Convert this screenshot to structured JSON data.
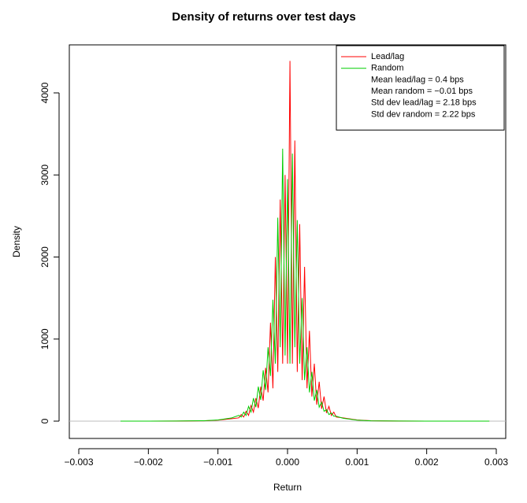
{
  "chart_data": {
    "type": "line",
    "title": "Density of returns over test days",
    "xlabel": "Return",
    "ylabel": "Density",
    "xlim": [
      -0.003136,
      0.003136
    ],
    "ylim": [
      -211,
      4585
    ],
    "xticks": [
      {
        "value": -0.003,
        "label": "−0.003"
      },
      {
        "value": -0.002,
        "label": "−0.002"
      },
      {
        "value": -0.001,
        "label": "−0.001"
      },
      {
        "value": 0,
        "label": "0.000"
      },
      0.001,
      0.002,
      0.003
    ],
    "yticks": [
      0,
      1000,
      2000,
      3000,
      4000
    ],
    "hline": 0,
    "hline_color": "#bebebe",
    "legend_position": "top-right",
    "x": [
      -0.0024,
      -0.002,
      -0.0016,
      -0.0012,
      -0.001,
      -0.0008,
      -0.0007,
      -0.000665,
      -0.00063,
      -0.000595,
      -0.00056,
      -0.000525,
      -0.00049,
      -0.000455,
      -0.00042,
      -0.000385,
      -0.00035,
      -0.000315,
      -0.00028,
      -0.000245,
      -0.00021,
      -0.000175,
      -0.00014,
      -0.000105,
      -7e-05,
      -3.5e-05,
      0,
      3.5e-05,
      7e-05,
      0.000105,
      0.00014,
      0.000175,
      0.00021,
      0.000245,
      0.00028,
      0.000315,
      0.00035,
      0.000385,
      0.00042,
      0.000455,
      0.00049,
      0.000525,
      0.00056,
      0.000595,
      0.00063,
      0.000665,
      0.0007,
      0.0008,
      0.001,
      0.0012,
      0.0016,
      0.002,
      0.0025,
      0.0029
    ],
    "series": [
      {
        "name": "Lead/lag",
        "color": "#ff0000",
        "values": [
          0,
          0,
          1,
          4,
          12,
          30,
          40,
          80,
          50,
          120,
          70,
          190,
          110,
          280,
          160,
          420,
          250,
          650,
          350,
          1200,
          400,
          2000,
          600,
          2700,
          700,
          3000,
          700,
          4390,
          700,
          3420,
          600,
          2400,
          500,
          1880,
          400,
          1100,
          300,
          700,
          200,
          480,
          150,
          300,
          100,
          180,
          70,
          110,
          50,
          40,
          15,
          5,
          1,
          0,
          0,
          0
        ]
      },
      {
        "name": "Random",
        "color": "#00cd00",
        "values": [
          0,
          0,
          1,
          5,
          15,
          40,
          70,
          50,
          110,
          70,
          180,
          110,
          280,
          170,
          420,
          260,
          620,
          380,
          900,
          550,
          1480,
          700,
          2480,
          900,
          3320,
          800,
          2950,
          700,
          3260,
          900,
          2450,
          700,
          1500,
          500,
          900,
          350,
          600,
          250,
          380,
          170,
          230,
          120,
          140,
          80,
          100,
          60,
          60,
          35,
          12,
          4,
          1,
          0,
          0,
          0
        ]
      }
    ],
    "legend_notes": [
      "Mean lead/lag = 0.4 bps",
      "Mean random = −0.01 bps",
      "Std dev lead/lag = 2.18 bps",
      "Std dev random = 2.22 bps"
    ]
  }
}
